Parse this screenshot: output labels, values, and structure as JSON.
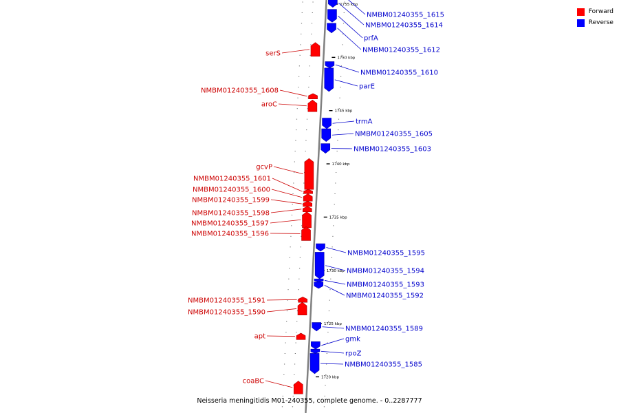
{
  "colors": {
    "forward": "#ff0000",
    "reverse": "#0000ff",
    "forward_label": "#cc0000",
    "reverse_label": "#0000cc",
    "backbone": "#808080"
  },
  "legend": {
    "forward": "Forward",
    "reverse": "Reverse"
  },
  "caption": "Neisseria meningitidis M01-240355, complete genome. - 0..2287777",
  "ticks": [
    {
      "kbp": 1755,
      "label": "1755 kbp"
    },
    {
      "kbp": 1750,
      "label": "1750 kbp"
    },
    {
      "kbp": 1745,
      "label": "1745 kbp"
    },
    {
      "kbp": 1740,
      "label": "1740 kbp"
    },
    {
      "kbp": 1735,
      "label": "1735 kbp"
    },
    {
      "kbp": 1730,
      "label": "1730 kbp"
    },
    {
      "kbp": 1725,
      "label": "1725 kbp"
    },
    {
      "kbp": 1720,
      "label": "1720 kbp"
    }
  ],
  "genes": [
    {
      "name": "NMBM01240355_1615",
      "strand": "reverse",
      "start": 1755.7,
      "end": 1756.6
    },
    {
      "name": "NMBM01240355_1614",
      "strand": "reverse",
      "start": 1754.7,
      "end": 1755.5
    },
    {
      "name": "prfA",
      "strand": "reverse",
      "start": 1753.3,
      "end": 1754.5
    },
    {
      "name": "NMBM01240355_1612",
      "strand": "reverse",
      "start": 1752.3,
      "end": 1753.2
    },
    {
      "name": "serS",
      "strand": "forward",
      "start": 1750.1,
      "end": 1751.4
    },
    {
      "name": "NMBM01240355_1610",
      "strand": "reverse",
      "start": 1749.0,
      "end": 1749.6
    },
    {
      "name": "parE",
      "strand": "reverse",
      "start": 1746.8,
      "end": 1749.0
    },
    {
      "name": "NMBM01240355_1608",
      "strand": "forward",
      "start": 1746.1,
      "end": 1746.6
    },
    {
      "name": "aroC",
      "strand": "forward",
      "start": 1744.9,
      "end": 1746.0
    },
    {
      "name": "trmA",
      "strand": "reverse",
      "start": 1743.3,
      "end": 1744.3
    },
    {
      "name": "NMBM01240355_1605",
      "strand": "reverse",
      "start": 1742.1,
      "end": 1743.3
    },
    {
      "name": "NMBM01240355_1603",
      "strand": "reverse",
      "start": 1741.0,
      "end": 1741.9
    },
    {
      "name": "gcvP",
      "strand": "forward",
      "start": 1737.6,
      "end": 1740.5
    },
    {
      "name": "NMBM01240355_1601",
      "strand": "forward",
      "start": 1737.2,
      "end": 1737.6
    },
    {
      "name": "NMBM01240355_1600",
      "strand": "forward",
      "start": 1736.5,
      "end": 1737.2
    },
    {
      "name": "NMBM01240355_1599",
      "strand": "forward",
      "start": 1736.0,
      "end": 1736.5
    },
    {
      "name": "NMBM01240355_1598",
      "strand": "forward",
      "start": 1735.5,
      "end": 1736.0
    },
    {
      "name": "NMBM01240355_1597",
      "strand": "forward",
      "start": 1734.0,
      "end": 1735.5
    },
    {
      "name": "NMBM01240355_1596",
      "strand": "forward",
      "start": 1732.8,
      "end": 1734.1
    },
    {
      "name": "NMBM01240355_1595",
      "strand": "reverse",
      "start": 1731.8,
      "end": 1732.5
    },
    {
      "name": "NMBM01240355_1594",
      "strand": "reverse",
      "start": 1729.2,
      "end": 1731.7
    },
    {
      "name": "NMBM01240355_1593",
      "strand": "reverse",
      "start": 1728.9,
      "end": 1729.2
    },
    {
      "name": "NMBM01240355_1592",
      "strand": "reverse",
      "start": 1728.3,
      "end": 1728.9
    },
    {
      "name": "NMBM01240355_1591",
      "strand": "forward",
      "start": 1727.0,
      "end": 1727.5
    },
    {
      "name": "NMBM01240355_1590",
      "strand": "forward",
      "start": 1725.8,
      "end": 1727.0
    },
    {
      "name": "NMBM01240355_1589",
      "strand": "reverse",
      "start": 1724.3,
      "end": 1725.1
    },
    {
      "name": "apt",
      "strand": "forward",
      "start": 1723.5,
      "end": 1724.1
    },
    {
      "name": "gmk",
      "strand": "reverse",
      "start": 1722.6,
      "end": 1723.3
    },
    {
      "name": "rpoZ",
      "strand": "reverse",
      "start": 1722.2,
      "end": 1722.6
    },
    {
      "name": "NMBM01240355_1585",
      "strand": "reverse",
      "start": 1720.3,
      "end": 1722.2
    },
    {
      "name": "coaBC",
      "strand": "forward",
      "start": 1718.4,
      "end": 1719.6
    }
  ]
}
